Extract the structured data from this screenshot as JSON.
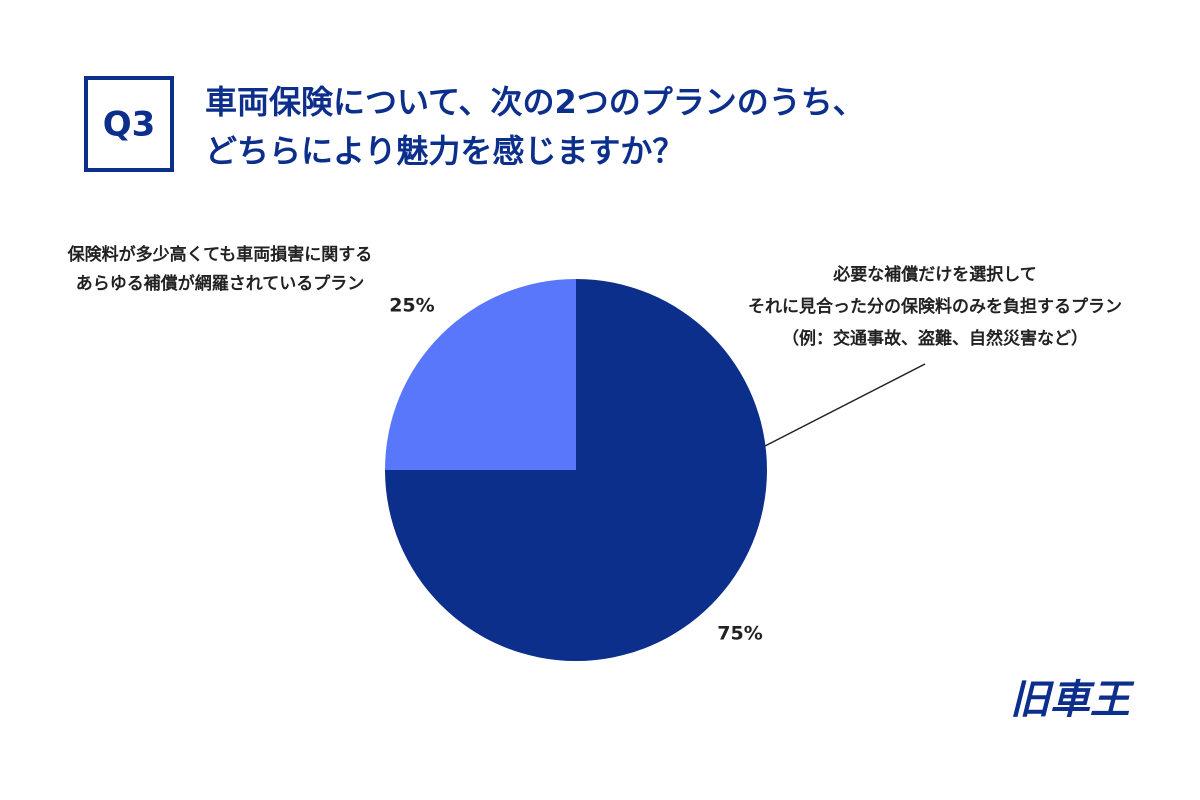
{
  "chart_data": {
    "type": "pie",
    "question_number": "Q3",
    "title": [
      "車両保険について、次の2つのプランのうち、",
      "どちらにより魅力を感じますか？"
    ],
    "categories": [
      [
        "必要な補償だけを選択して",
        "それに見合った分の保険料のみを負担するプラン",
        "（例：交通事故、盗難、自然災害など）"
      ],
      [
        "保険料が多少高くても車両損害に関する",
        "あらゆる補償が網羅されているプラン"
      ]
    ],
    "values": [
      75,
      25
    ],
    "value_labels": [
      "75%",
      "25%"
    ],
    "colors": [
      "#0c2f8c",
      "#5877fb"
    ]
  },
  "logo": "旧車王"
}
